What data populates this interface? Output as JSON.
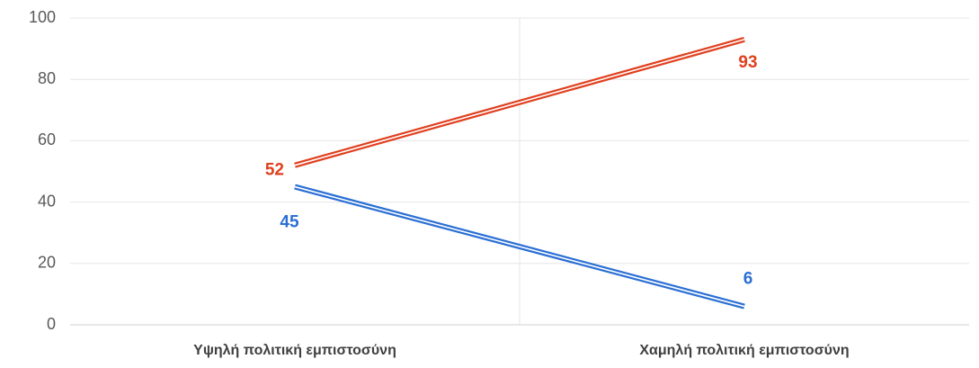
{
  "chart_data": {
    "type": "line",
    "categories": [
      "Υψηλή πολιτική εμπιστοσύνη",
      "Χαμηλή πολιτική εμπιστοσύνη"
    ],
    "series": [
      {
        "color": "#e0401f",
        "values": [
          52,
          93
        ]
      },
      {
        "color": "#2b6fd4",
        "values": [
          45,
          6
        ]
      }
    ],
    "ylim": [
      0,
      100
    ],
    "yticks": [
      0,
      20,
      40,
      60,
      80,
      100
    ],
    "grid": true,
    "data_labels": true
  }
}
